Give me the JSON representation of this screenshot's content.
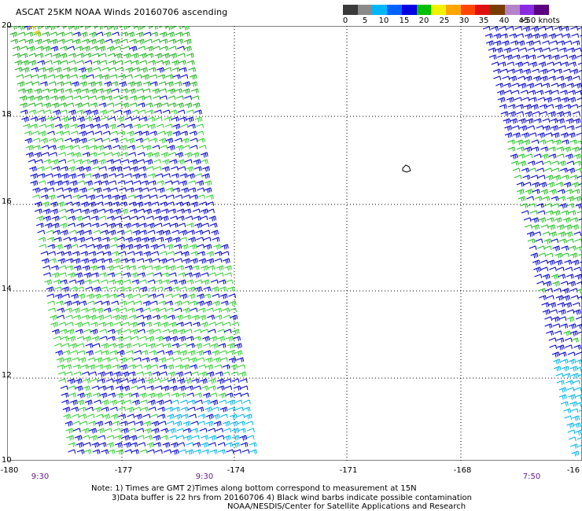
{
  "title": "ASCAT 25KM NOAA Winds 20160706 ascending",
  "color_scale": {
    "unit_label": "knots",
    "ticks": [
      "0",
      "5",
      "10",
      "15",
      "20",
      "25",
      "30",
      "35",
      "40",
      "45",
      ">50 knots"
    ],
    "colors": [
      "#3a3a3a",
      "#8a8a8a",
      "#00b7ff",
      "#0062ff",
      "#0000e0",
      "#00c000",
      "#f2f200",
      "#ffa500",
      "#ff4500",
      "#e01010",
      "#7a3c00",
      "#b482c8",
      "#8a2be2",
      "#5a0080"
    ]
  },
  "map": {
    "lat_labels": [
      "20",
      "18",
      "16",
      "14",
      "12",
      "10"
    ],
    "lon_labels": [
      "-180",
      "-177",
      "-174",
      "-171",
      "-168",
      "-16"
    ],
    "time_labels": [
      "9:30",
      "9:30",
      "7:50"
    ],
    "island_marker": "island-marker"
  },
  "notes": {
    "line1": "Note: 1) Times are GMT  2)Times along bottom correspond to measurement at 15N",
    "line2": "3)Data buffer is 22 hrs from 20160706  4) Black wind barbs indicate possible contamination",
    "line3": "NOAA/NESDIS/Center for Satellite Applications and Research"
  }
}
